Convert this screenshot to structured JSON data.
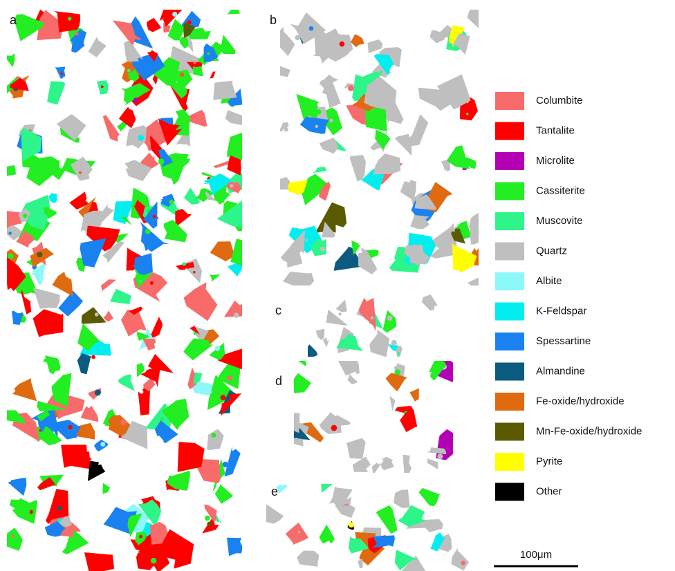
{
  "panels": [
    {
      "label": "a"
    },
    {
      "label": "b"
    },
    {
      "label": "c"
    },
    {
      "label": "d"
    },
    {
      "label": "e"
    }
  ],
  "legend": {
    "items": [
      {
        "name": "Columbite",
        "color": "#f76b6b"
      },
      {
        "name": "Tantalite",
        "color": "#ff0000"
      },
      {
        "name": "Microlite",
        "color": "#b400b4"
      },
      {
        "name": "Cassiterite",
        "color": "#22ee22"
      },
      {
        "name": "Muscovite",
        "color": "#2ef58a"
      },
      {
        "name": "Quartz",
        "color": "#bfbfbf"
      },
      {
        "name": "Albite",
        "color": "#8cf8f8"
      },
      {
        "name": "K-Feldspar",
        "color": "#00eef0"
      },
      {
        "name": "Spessartine",
        "color": "#1a82f0"
      },
      {
        "name": "Almandine",
        "color": "#0b5a80"
      },
      {
        "name": "Fe-oxide/hydroxide",
        "color": "#e06a10"
      },
      {
        "name": "Mn-Fe-oxide/hydroxide",
        "color": "#5a5a00"
      },
      {
        "name": "Pyrite",
        "color": "#ffff00"
      },
      {
        "name": "Other",
        "color": "#000000"
      }
    ]
  },
  "scale_bar": {
    "label": "100μm"
  }
}
